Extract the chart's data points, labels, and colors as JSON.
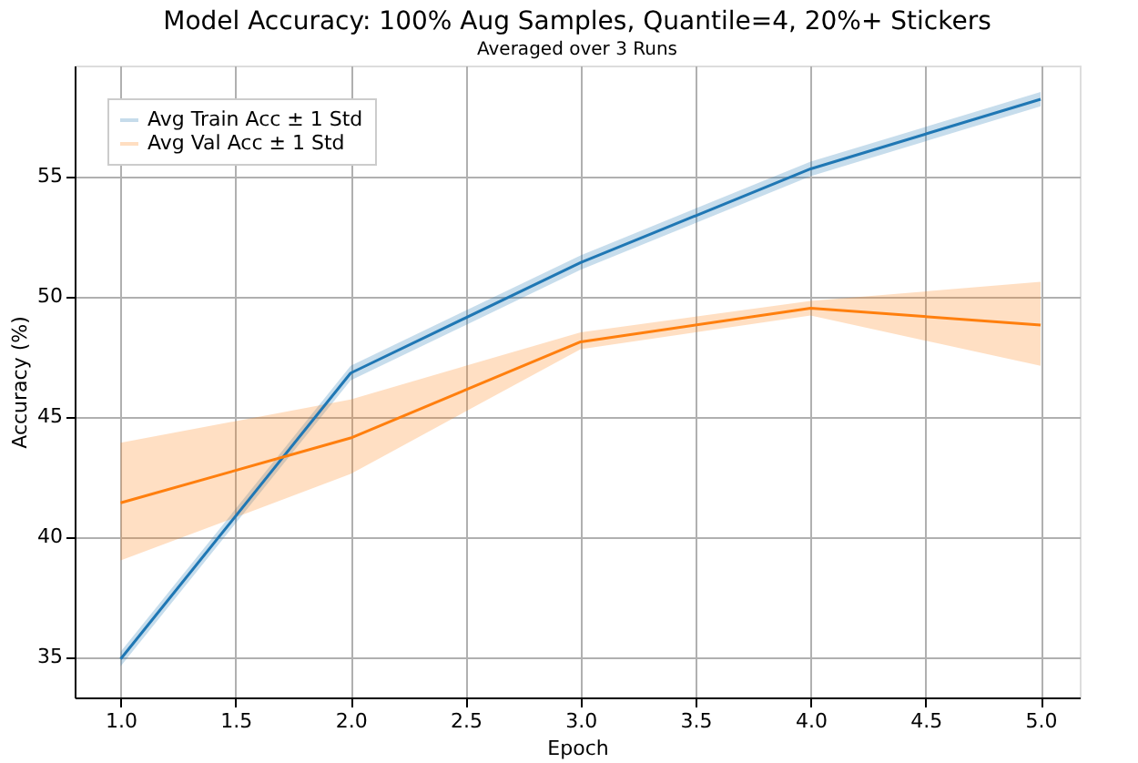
{
  "chart_data": {
    "type": "line",
    "title": "Model Accuracy: 100% Aug Samples, Quantile=4, 20%+ Stickers",
    "subtitle": "Averaged over 3 Runs",
    "xlabel": "Epoch",
    "ylabel": "Accuracy (%)",
    "x": [
      1,
      2,
      3,
      4,
      5
    ],
    "series": [
      {
        "name": "Avg Train Acc ± 1 Std",
        "color": "#1f77b4",
        "values": [
          34.9,
          46.8,
          51.4,
          55.3,
          58.2
        ],
        "lower": [
          34.6,
          46.5,
          51.1,
          55.0,
          57.9
        ],
        "upper": [
          35.2,
          47.1,
          51.7,
          55.6,
          58.5
        ]
      },
      {
        "name": "Avg Val Acc ± 1 Std",
        "color": "#ff7f0e",
        "values": [
          41.4,
          44.1,
          48.1,
          49.5,
          48.8
        ],
        "lower": [
          39.0,
          42.6,
          47.8,
          49.2,
          47.1
        ],
        "upper": [
          43.9,
          45.7,
          48.5,
          49.8,
          50.6
        ]
      }
    ],
    "xlim": [
      0.8,
      5.17
    ],
    "ylim": [
      33.3,
      59.6
    ],
    "xticks": [
      {
        "value": 1,
        "label": "1.0"
      },
      {
        "value": 1.5,
        "label": "1.5"
      },
      {
        "value": 2,
        "label": "2.0"
      },
      {
        "value": 2.5,
        "label": "2.5"
      },
      {
        "value": 3,
        "label": "3.0"
      },
      {
        "value": 3.5,
        "label": "3.5"
      },
      {
        "value": 4,
        "label": "4.0"
      },
      {
        "value": 4.5,
        "label": "4.5"
      },
      {
        "value": 5,
        "label": "5.0"
      }
    ],
    "yticks": [
      35,
      40,
      45,
      50,
      55
    ],
    "grid": true,
    "legend": "top left"
  }
}
